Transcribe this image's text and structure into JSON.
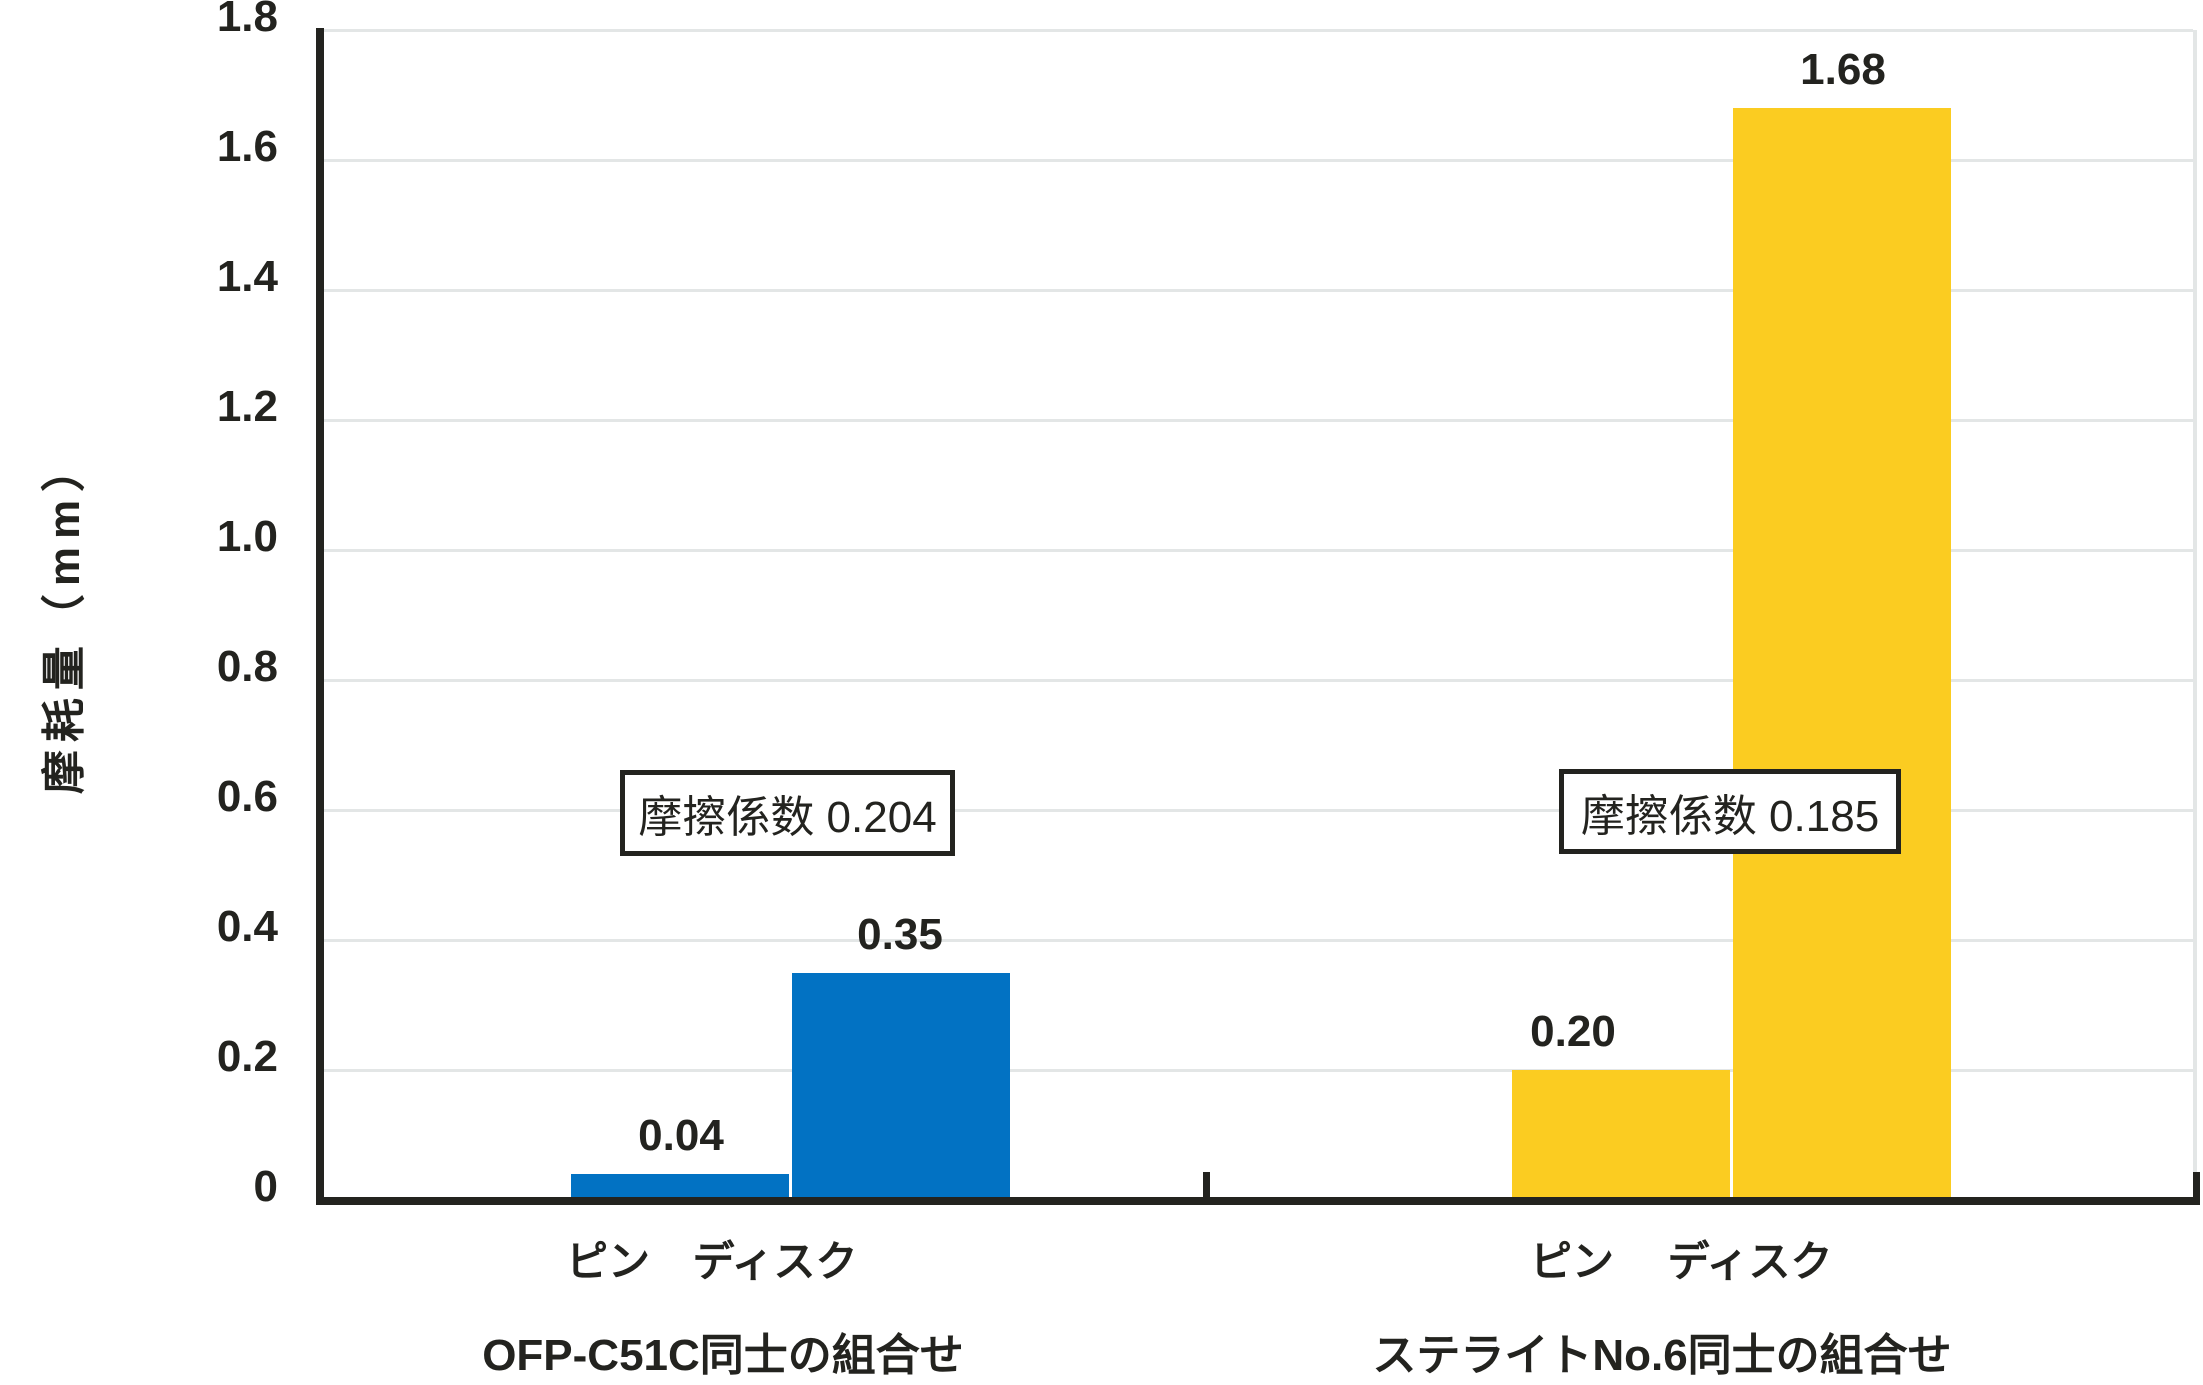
{
  "chart_data": {
    "type": "bar",
    "title": "",
    "xlabel": "",
    "ylabel": "摩耗量（mm）",
    "ylim": [
      0,
      1.8
    ],
    "ytick_step": 0.2,
    "ytick_labels": [
      "1.8",
      "1.6",
      "1.4",
      "1.2",
      "1.0",
      "0.8",
      "0.6",
      "0.4",
      "0.2",
      "0"
    ],
    "grid": true,
    "legend_position": "none",
    "categories": [
      "ピン",
      "ディスク"
    ],
    "groups": [
      {
        "label": "OFP-C51C同士の組合せ",
        "bar_color": "#0272C3",
        "annotation": "摩擦係数 0.204",
        "bars": [
          {
            "category": "ピン",
            "value": 0.04,
            "value_label": "0.04"
          },
          {
            "category": "ディスク",
            "value": 0.35,
            "value_label": "0.35"
          }
        ]
      },
      {
        "label": "ステライトNo.6同士の組合せ",
        "bar_color": "#FBCC21",
        "annotation": "摩擦係数 0.185",
        "bars": [
          {
            "category": "ピン",
            "value": 0.2,
            "value_label": "0.20"
          },
          {
            "category": "ディスク",
            "value": 1.68,
            "value_label": "1.68"
          }
        ]
      }
    ],
    "colors": {
      "axis": "#23231F",
      "grid": "#E3E6E6",
      "text": "#23231F",
      "background": "#FFFFFF",
      "annotation_bg": "#FFFFFF",
      "annotation_border": "#23231F"
    }
  }
}
